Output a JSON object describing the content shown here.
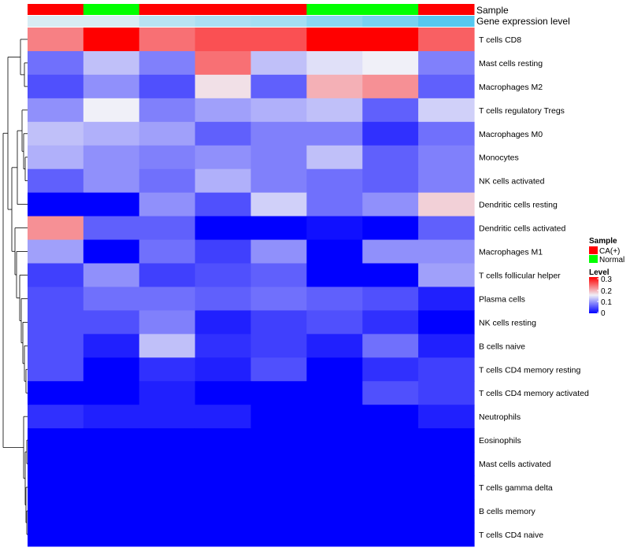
{
  "chart_data": {
    "type": "heatmap",
    "title": "",
    "annotation_rows": {
      "sample_label": "Sample",
      "expression_label": "Gene expression level"
    },
    "column_samples": [
      "CA(+)",
      "Normal",
      "CA(+)",
      "CA(+)",
      "CA(+)",
      "Normal",
      "Normal",
      "CA(+)"
    ],
    "column_expression": [
      0.0,
      0.0,
      0.25,
      0.35,
      0.4,
      0.6,
      0.75,
      1.0
    ],
    "rows": [
      "T cells CD8",
      "Mast cells resting",
      "Macrophages M2",
      "T cells regulatory  Tregs",
      "Macrophages M0",
      "Monocytes",
      "NK cells activated",
      "Dendritic cells resting",
      "Dendritic cells activated",
      "Macrophages M1",
      "T cells follicular helper",
      "Plasma cells",
      "NK cells resting",
      "B cells naive",
      "T cells CD4 memory resting",
      "T cells CD4 memory activated",
      "Neutrophils",
      "Eosinophils",
      "Mast cells activated",
      "T cells gamma delta",
      "B cells memory",
      "T cells CD4 naive"
    ],
    "values": [
      [
        0.22,
        0.3,
        0.23,
        0.25,
        0.25,
        0.3,
        0.3,
        0.24
      ],
      [
        0.07,
        0.12,
        0.08,
        0.23,
        0.12,
        0.14,
        0.15,
        0.08
      ],
      [
        0.05,
        0.09,
        0.05,
        0.16,
        0.06,
        0.19,
        0.21,
        0.06
      ],
      [
        0.09,
        0.15,
        0.08,
        0.1,
        0.11,
        0.12,
        0.06,
        0.13
      ],
      [
        0.12,
        0.11,
        0.1,
        0.06,
        0.08,
        0.08,
        0.03,
        0.07
      ],
      [
        0.11,
        0.09,
        0.08,
        0.09,
        0.08,
        0.12,
        0.06,
        0.08
      ],
      [
        0.06,
        0.09,
        0.07,
        0.11,
        0.08,
        0.07,
        0.06,
        0.08
      ],
      [
        0.0,
        0.0,
        0.09,
        0.05,
        0.13,
        0.07,
        0.09,
        0.17
      ],
      [
        0.21,
        0.06,
        0.06,
        0.0,
        0.0,
        0.01,
        0.0,
        0.06
      ],
      [
        0.1,
        0.0,
        0.07,
        0.04,
        0.09,
        0.0,
        0.09,
        0.09
      ],
      [
        0.04,
        0.09,
        0.04,
        0.05,
        0.06,
        0.0,
        0.0,
        0.1
      ],
      [
        0.05,
        0.07,
        0.07,
        0.06,
        0.07,
        0.06,
        0.05,
        0.02
      ],
      [
        0.05,
        0.05,
        0.08,
        0.02,
        0.04,
        0.05,
        0.03,
        0.0
      ],
      [
        0.05,
        0.02,
        0.12,
        0.03,
        0.04,
        0.02,
        0.07,
        0.02
      ],
      [
        0.05,
        0.0,
        0.03,
        0.02,
        0.05,
        0.0,
        0.03,
        0.04
      ],
      [
        0.0,
        0.0,
        0.02,
        0.0,
        0.0,
        0.0,
        0.05,
        0.04
      ],
      [
        0.03,
        0.02,
        0.02,
        0.02,
        0.0,
        0.0,
        0.0,
        0.02
      ],
      [
        0.0,
        0.0,
        0.0,
        0.0,
        0.0,
        0.0,
        0.0,
        0.0
      ],
      [
        0.0,
        0.0,
        0.0,
        0.0,
        0.0,
        0.0,
        0.0,
        0.0
      ],
      [
        0.0,
        0.0,
        0.0,
        0.0,
        0.0,
        0.0,
        0.0,
        0.0
      ],
      [
        0.0,
        0.0,
        0.0,
        0.0,
        0.0,
        0.0,
        0.0,
        0.0
      ],
      [
        0.0,
        0.0,
        0.0,
        0.0,
        0.0,
        0.0,
        0.0,
        0.0
      ]
    ],
    "color_scale": {
      "min": 0,
      "mid": 0.15,
      "max": 0.3,
      "low_color": "#0000ff",
      "mid_color": "#f0f0f8",
      "high_color": "#ff0000"
    },
    "expression_scale": {
      "low_color": "#d8ecf4",
      "high_color": "#56c8f0"
    },
    "legend": {
      "sample_title": "Sample",
      "sample_entries": [
        {
          "label": "CA(+)",
          "color": "#ff0000"
        },
        {
          "label": "Normal",
          "color": "#00ff00"
        }
      ],
      "level_title": "Level",
      "level_ticks": [
        "0.3",
        "0.2",
        "0.1",
        "0"
      ],
      "placement": "right"
    },
    "dendrogram": "rows-left"
  }
}
